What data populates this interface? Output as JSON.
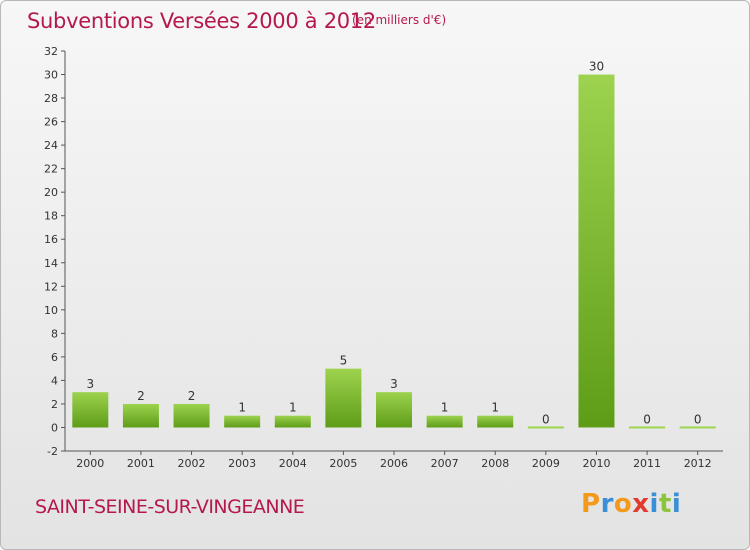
{
  "header": {
    "title": "Subventions Versées 2000 à 2012",
    "subtitle": "(en milliers d'€)"
  },
  "footer": {
    "commune": "SAINT-SEINE-SUR-VINGEANNE",
    "logo_letters": [
      "P",
      "r",
      "o",
      "x",
      "i",
      "t",
      "i"
    ],
    "logo_colors": [
      "#f39a1c",
      "#3a8fd6",
      "#f39a1c",
      "#e23b2d",
      "#3a8fd6",
      "#8cc43a",
      "#3a8fd6"
    ]
  },
  "colors": {
    "bar_light": "#9dd34e",
    "bar_dark": "#5e9c18",
    "accent": "#b5184c"
  },
  "chart_data": {
    "type": "bar",
    "title": "Subventions Versées 2000 à 2012",
    "subtitle": "(en milliers d'€)",
    "categories": [
      "2000",
      "2001",
      "2002",
      "2003",
      "2004",
      "2005",
      "2006",
      "2007",
      "2008",
      "2009",
      "2010",
      "2011",
      "2012"
    ],
    "values": [
      3,
      2,
      2,
      1,
      1,
      5,
      3,
      1,
      1,
      0,
      30,
      0,
      0
    ],
    "ylim": [
      -2,
      32
    ],
    "yticks": [
      -2,
      0,
      2,
      4,
      6,
      8,
      10,
      12,
      14,
      16,
      18,
      20,
      22,
      24,
      26,
      28,
      30,
      32
    ],
    "grid": false,
    "xlabel": "",
    "ylabel": ""
  }
}
